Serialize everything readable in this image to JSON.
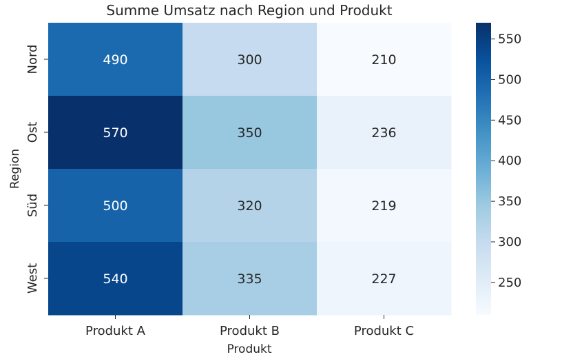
{
  "chart_data": {
    "type": "heatmap",
    "title": "Summe Umsatz nach Region und Produkt",
    "xlabel": "Produkt",
    "ylabel": "Region",
    "x_categories": [
      "Produkt A",
      "Produkt B",
      "Produkt C"
    ],
    "y_categories": [
      "Nord",
      "Ost",
      "Süd",
      "West"
    ],
    "values": [
      [
        490,
        300,
        210
      ],
      [
        570,
        350,
        236
      ],
      [
        500,
        320,
        219
      ],
      [
        540,
        335,
        227
      ]
    ],
    "colorbar": {
      "colormap": "Blues",
      "range": [
        210,
        570
      ],
      "ticks": [
        250,
        300,
        350,
        400,
        450,
        500,
        550
      ]
    },
    "annotation_colors": {
      "light": "#ffffff",
      "dark": "#262626"
    }
  }
}
